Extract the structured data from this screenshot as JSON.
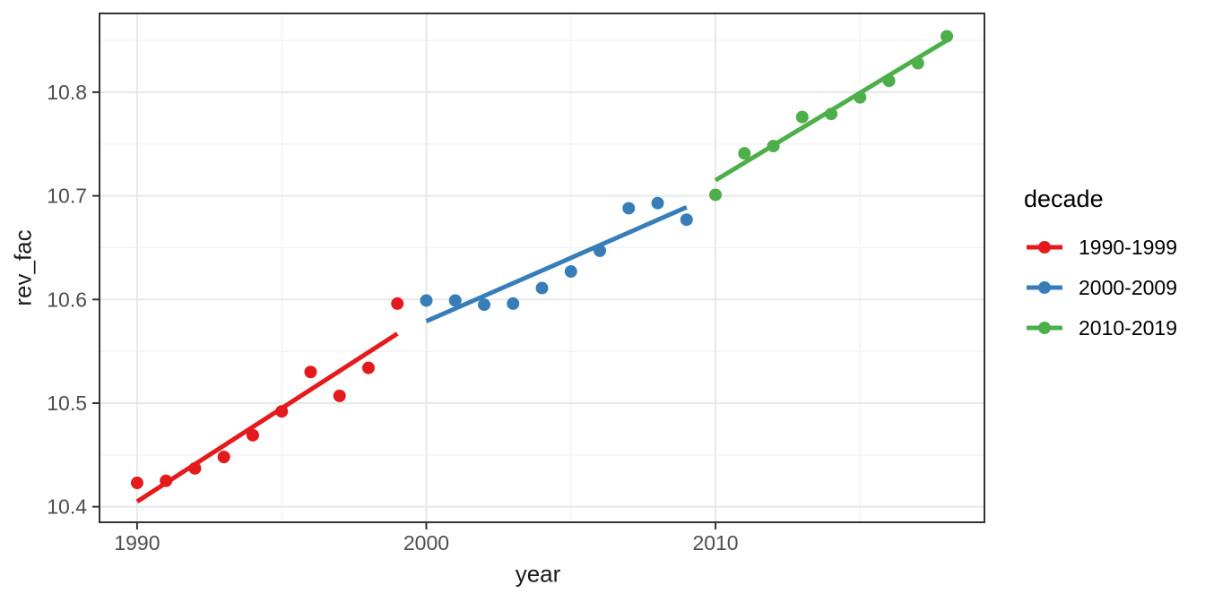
{
  "chart_data": {
    "type": "scatter",
    "title": "",
    "xlabel": "year",
    "ylabel": "rev_fac",
    "legend": {
      "title": "decade",
      "position": "right"
    },
    "axes": {
      "xlim": [
        1988.7,
        2019.3
      ],
      "ylim": [
        10.385,
        10.876
      ],
      "x_tick_values": [
        1990,
        2000,
        2010
      ],
      "x_tick_labels": [
        "1990",
        "2000",
        "2010"
      ],
      "x_minor_gridlines": [
        1995,
        2005,
        2015
      ],
      "y_tick_values": [
        10.4,
        10.5,
        10.6,
        10.7,
        10.8
      ],
      "y_tick_labels": [
        "10.4",
        "10.5",
        "10.6",
        "10.7",
        "10.8"
      ],
      "y_minor_gridlines": [
        10.45,
        10.55,
        10.65,
        10.75,
        10.85
      ],
      "grid": true
    },
    "series": [
      {
        "name": "1990-1999",
        "color": "#E41A1C",
        "x": [
          1990,
          1991,
          1992,
          1993,
          1994,
          1995,
          1996,
          1997,
          1998,
          1999
        ],
        "y": [
          10.423,
          10.425,
          10.437,
          10.448,
          10.469,
          10.492,
          10.53,
          10.507,
          10.534,
          10.596
        ],
        "trend": {
          "x": [
            1990,
            1999
          ],
          "y": [
            10.405,
            10.567
          ]
        }
      },
      {
        "name": "2000-2009",
        "color": "#377EB8",
        "x": [
          2000,
          2001,
          2002,
          2003,
          2004,
          2005,
          2006,
          2007,
          2008,
          2009
        ],
        "y": [
          10.599,
          10.599,
          10.595,
          10.596,
          10.611,
          10.627,
          10.647,
          10.688,
          10.693,
          10.677
        ],
        "trend": {
          "x": [
            2000,
            2009
          ],
          "y": [
            10.579,
            10.689
          ]
        }
      },
      {
        "name": "2010-2019",
        "color": "#4DAF4A",
        "x": [
          2010,
          2011,
          2012,
          2013,
          2014,
          2015,
          2016,
          2017,
          2018
        ],
        "y": [
          10.701,
          10.741,
          10.748,
          10.776,
          10.779,
          10.795,
          10.811,
          10.828,
          10.854
        ],
        "trend": {
          "x": [
            2010,
            2018
          ],
          "y": [
            10.715,
            10.85
          ]
        }
      }
    ],
    "style": {
      "background": "#FFFFFF",
      "panel_background": "#FFFFFF",
      "panel_border": "#333333",
      "grid_major": "#E8E8E8",
      "grid_minor": "#F3F3F3",
      "tick_color": "#333333",
      "tick_label_color": "#4D4D4D",
      "axis_title_color": "#1A1A1A",
      "legend_text_color": "#000000"
    }
  }
}
